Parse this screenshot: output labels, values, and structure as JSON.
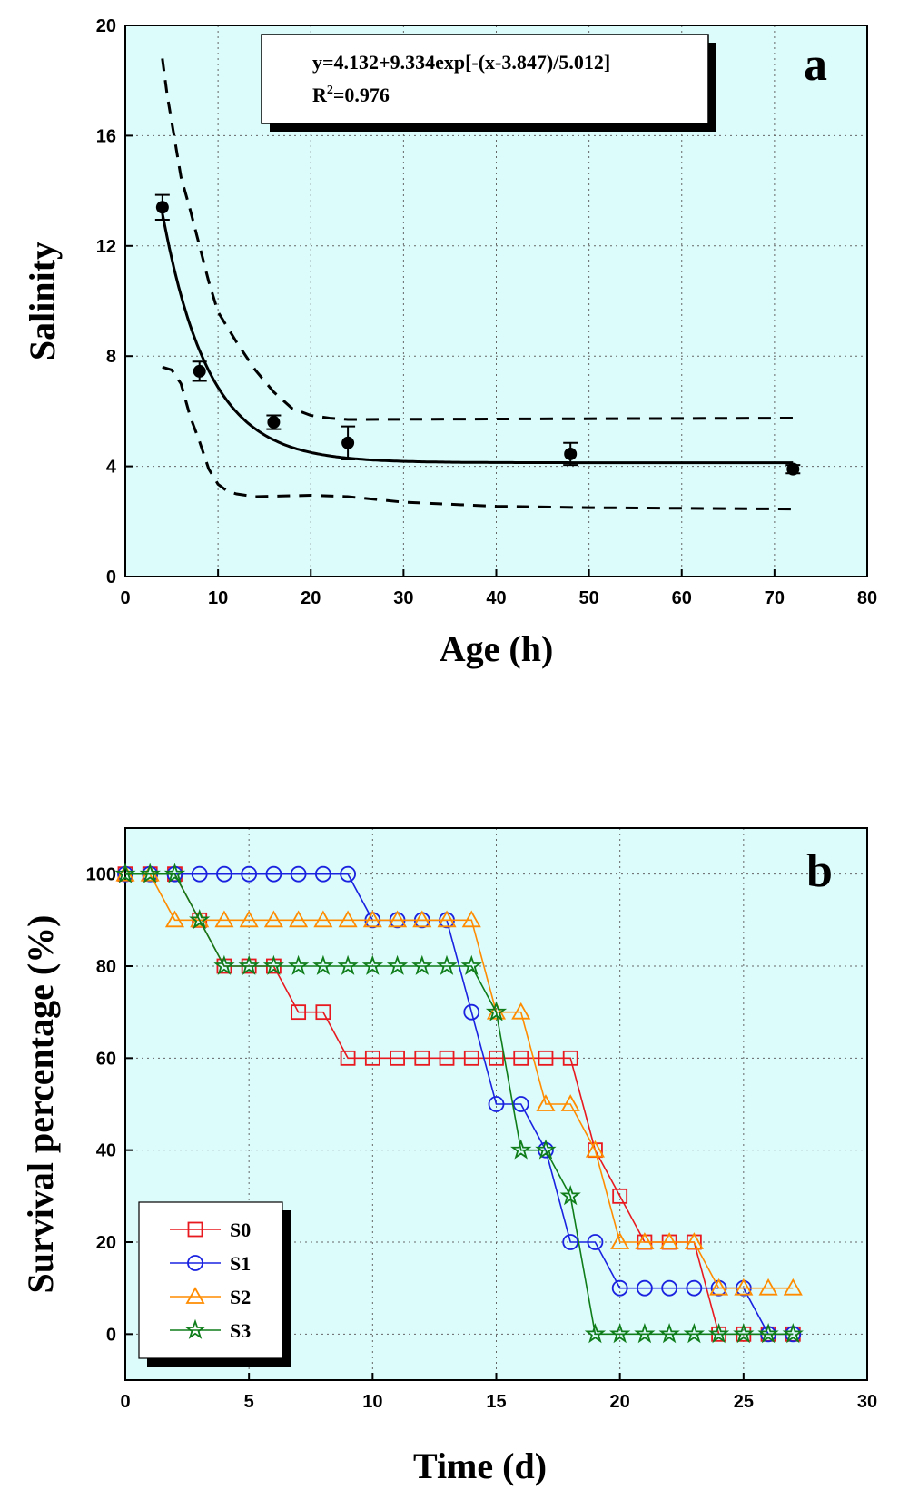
{
  "chart_data": [
    {
      "id": "a",
      "type": "scatter",
      "panel_label": "a",
      "xlabel": "Age (h)",
      "ylabel": "Salinity",
      "xlim": [
        0,
        80
      ],
      "ylim": [
        0,
        20
      ],
      "xticks": [
        0,
        10,
        20,
        30,
        40,
        50,
        60,
        70,
        80
      ],
      "yticks": [
        0,
        4,
        8,
        12,
        16,
        20
      ],
      "grid": true,
      "background": "#dcfbfb",
      "equation": "y=4.132+9.334exp[-(x-3.847)/5.012]",
      "r2_label": "R",
      "r2_sup": "2",
      "r2_value": "=0.976",
      "points": [
        {
          "x": 4,
          "y": 13.4,
          "err": 0.45
        },
        {
          "x": 8,
          "y": 7.45,
          "err": 0.35
        },
        {
          "x": 16,
          "y": 5.6,
          "err": 0.25
        },
        {
          "x": 24,
          "y": 4.85,
          "err": 0.6
        },
        {
          "x": 48,
          "y": 4.45,
          "err": 0.4
        },
        {
          "x": 72,
          "y": 3.9,
          "err": 0.15
        }
      ],
      "fit": {
        "a": 4.132,
        "b": 9.334,
        "c": 3.847,
        "d": 5.012,
        "x_range": [
          4,
          72
        ]
      },
      "upper_band": [
        [
          4,
          18.8
        ],
        [
          4.5,
          17.5
        ],
        [
          5,
          16.5
        ],
        [
          5.5,
          15.5
        ],
        [
          6,
          14.5
        ],
        [
          7,
          13.3
        ],
        [
          8,
          12.0
        ],
        [
          9,
          10.7
        ],
        [
          10,
          9.6
        ],
        [
          12,
          8.5
        ],
        [
          14,
          7.5
        ],
        [
          16,
          6.7
        ],
        [
          18,
          6.1
        ],
        [
          20,
          5.85
        ],
        [
          22,
          5.75
        ],
        [
          24,
          5.7
        ],
        [
          72,
          5.75
        ]
      ],
      "lower_band": [
        [
          4,
          7.6
        ],
        [
          5,
          7.5
        ],
        [
          6,
          7.0
        ],
        [
          7,
          5.8
        ],
        [
          8,
          4.9
        ],
        [
          9,
          3.9
        ],
        [
          10,
          3.35
        ],
        [
          11,
          3.1
        ],
        [
          12,
          3.0
        ],
        [
          14,
          2.9
        ],
        [
          20,
          2.95
        ],
        [
          24,
          2.9
        ],
        [
          30,
          2.7
        ],
        [
          40,
          2.55
        ],
        [
          50,
          2.5
        ],
        [
          72,
          2.45
        ]
      ]
    },
    {
      "id": "b",
      "type": "line",
      "panel_label": "b",
      "xlabel": "Time (d)",
      "ylabel": "Survival percentage (%)",
      "xlim": [
        0,
        30
      ],
      "ylim": [
        -10,
        110
      ],
      "xticks": [
        0,
        5,
        10,
        15,
        20,
        25,
        30
      ],
      "yticks": [
        0,
        20,
        40,
        60,
        80,
        100
      ],
      "grid": true,
      "background": "#dcfbfb",
      "legend": "bottom-left",
      "x": [
        0,
        1,
        2,
        3,
        4,
        5,
        6,
        7,
        8,
        9,
        10,
        11,
        12,
        13,
        14,
        15,
        16,
        17,
        18,
        19,
        20,
        21,
        22,
        23,
        24,
        25,
        26,
        27
      ],
      "series": [
        {
          "name": "S0",
          "color": "#e8191f",
          "marker": "square",
          "values": [
            100,
            100,
            100,
            90,
            80,
            80,
            80,
            70,
            70,
            60,
            60,
            60,
            60,
            60,
            60,
            60,
            60,
            60,
            60,
            40,
            30,
            20,
            20,
            20,
            0,
            0,
            0,
            0
          ]
        },
        {
          "name": "S1",
          "color": "#1a22e0",
          "marker": "circle",
          "values": [
            100,
            100,
            100,
            100,
            100,
            100,
            100,
            100,
            100,
            100,
            90,
            90,
            90,
            90,
            70,
            50,
            50,
            40,
            20,
            20,
            10,
            10,
            10,
            10,
            10,
            10,
            0,
            0
          ]
        },
        {
          "name": "S2",
          "color": "#ff8c00",
          "marker": "triangle",
          "values": [
            100,
            100,
            90,
            90,
            90,
            90,
            90,
            90,
            90,
            90,
            90,
            90,
            90,
            90,
            90,
            70,
            70,
            50,
            50,
            40,
            20,
            20,
            20,
            20,
            10,
            10,
            10,
            10
          ]
        },
        {
          "name": "S3",
          "color": "#0f7d1a",
          "marker": "star",
          "values": [
            100,
            100,
            100,
            90,
            80,
            80,
            80,
            80,
            80,
            80,
            80,
            80,
            80,
            80,
            80,
            70,
            40,
            40,
            30,
            0,
            0,
            0,
            0,
            0,
            0,
            0,
            0,
            0
          ]
        }
      ]
    }
  ]
}
